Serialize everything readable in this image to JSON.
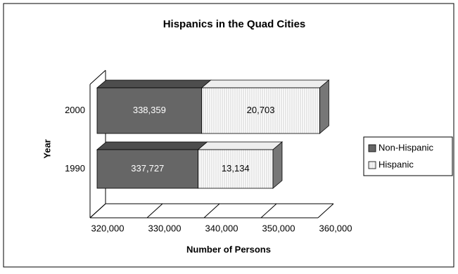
{
  "chart_data": {
    "type": "stacked-bar-horizontal-3d",
    "title": "Hispanics in the Quad Cities",
    "xlabel": "Number of Persons",
    "ylabel": "Year",
    "categories": [
      "1990",
      "2000"
    ],
    "series": [
      {
        "name": "Non-Hispanic",
        "color": "#666666",
        "values": [
          337727,
          338359
        ],
        "value_labels": [
          "337,727",
          "338,359"
        ]
      },
      {
        "name": "Hispanic",
        "color": "#ffffff",
        "values": [
          13134,
          20703
        ],
        "value_labels": [
          "13,134",
          "20,703"
        ]
      }
    ],
    "xlim": [
      320000,
      360000
    ],
    "xticks": [
      {
        "value": 320000,
        "label": "320,000"
      },
      {
        "value": 330000,
        "label": "330,000"
      },
      {
        "value": 340000,
        "label": "340,000"
      },
      {
        "value": 350000,
        "label": "350,000"
      },
      {
        "value": 360000,
        "label": "360,000"
      }
    ],
    "legend": "right"
  }
}
